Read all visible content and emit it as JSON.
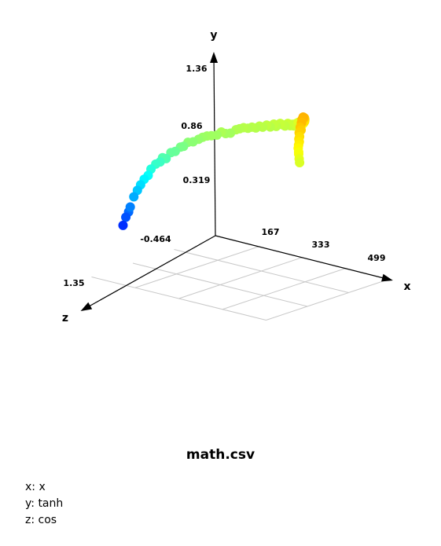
{
  "chart_data": {
    "type": "scatter",
    "title": "math.csv",
    "axes": {
      "x": {
        "label": "x",
        "ticks": [
          167,
          333,
          499
        ]
      },
      "y": {
        "label": "y",
        "ticks": [
          -0.464,
          0.319,
          0.86,
          1.36
        ]
      },
      "z": {
        "label": "z",
        "ticks": [
          1.35
        ]
      }
    },
    "grid": true,
    "colormap": "jet, colored by y",
    "ylim": [
      -0.464,
      1.36
    ],
    "mapping": {
      "x": "x",
      "y": "tanh",
      "z": "cos"
    },
    "series": [
      {
        "points": [
          [
            0,
            -0.02,
            1.0
          ],
          [
            6,
            0.07,
            0.98
          ],
          [
            12,
            0.13,
            0.96
          ],
          [
            18,
            0.19,
            0.97
          ],
          [
            24,
            0.3,
            0.93
          ],
          [
            30,
            0.37,
            0.89
          ],
          [
            36,
            0.43,
            0.86
          ],
          [
            42,
            0.49,
            0.82
          ],
          [
            48,
            0.53,
            0.77
          ],
          [
            54,
            0.6,
            0.75
          ],
          [
            60,
            0.65,
            0.68
          ],
          [
            66,
            0.67,
            0.62
          ],
          [
            72,
            0.72,
            0.61
          ],
          [
            78,
            0.71,
            0.57
          ],
          [
            84,
            0.77,
            0.5
          ],
          [
            90,
            0.78,
            0.44
          ],
          [
            96,
            0.82,
            0.36
          ],
          [
            102,
            0.83,
            0.33
          ],
          [
            108,
            0.87,
            0.27
          ],
          [
            114,
            0.87,
            0.19
          ],
          [
            120,
            0.89,
            0.1
          ],
          [
            126,
            0.91,
            0.05
          ],
          [
            132,
            0.92,
            -0.01
          ],
          [
            138,
            0.92,
            -0.07
          ],
          [
            144,
            0.92,
            -0.16
          ],
          [
            150,
            0.95,
            -0.22
          ],
          [
            156,
            0.93,
            -0.28
          ],
          [
            162,
            0.93,
            -0.35
          ],
          [
            168,
            0.96,
            -0.44
          ],
          [
            174,
            0.97,
            -0.48
          ],
          [
            180,
            0.98,
            -0.53
          ],
          [
            186,
            0.97,
            -0.59
          ],
          [
            192,
            0.98,
            -0.64
          ],
          [
            198,
            0.97,
            -0.69
          ],
          [
            204,
            0.99,
            -0.73
          ],
          [
            210,
            0.98,
            -0.76
          ],
          [
            216,
            1.0,
            -0.81
          ],
          [
            222,
            0.98,
            -0.85
          ],
          [
            228,
            1.01,
            -0.89
          ],
          [
            234,
            0.99,
            -0.9
          ],
          [
            240,
            1.02,
            -0.95
          ],
          [
            246,
            1.01,
            -0.96
          ],
          [
            252,
            1.0,
            -0.97
          ],
          [
            258,
            1.03,
            -0.99
          ],
          [
            264,
            1.01,
            -1.0
          ],
          [
            270,
            1.03,
            -1.0
          ],
          [
            276,
            1.02,
            -0.99
          ],
          [
            282,
            1.05,
            -0.99
          ],
          [
            288,
            1.04,
            -0.96
          ],
          [
            294,
            1.08,
            -0.95
          ],
          [
            300,
            1.05,
            -0.92
          ],
          [
            306,
            1.09,
            -0.91
          ],
          [
            312,
            1.07,
            -0.87
          ],
          [
            318,
            1.12,
            -0.84
          ],
          [
            324,
            1.11,
            -0.81
          ],
          [
            330,
            1.13,
            -0.77
          ],
          [
            336,
            1.15,
            -0.73
          ],
          [
            342,
            1.18,
            -0.7
          ],
          [
            348,
            1.17,
            -0.63
          ],
          [
            354,
            1.2,
            -0.6
          ],
          [
            360,
            1.22,
            -0.53
          ],
          [
            366,
            1.24,
            -0.5
          ],
          [
            372,
            1.23,
            -0.44
          ],
          [
            378,
            1.28,
            -0.39
          ],
          [
            384,
            1.3,
            -0.31
          ],
          [
            390,
            1.31,
            -0.28
          ],
          [
            396,
            1.33,
            -0.2
          ],
          [
            402,
            1.34,
            -0.16
          ],
          [
            408,
            1.36,
            -0.1
          ],
          [
            414,
            1.35,
            -0.02
          ],
          [
            420,
            1.33,
            0.04
          ],
          [
            426,
            1.34,
            0.1
          ],
          [
            432,
            1.31,
            0.18
          ],
          [
            438,
            1.29,
            0.21
          ],
          [
            444,
            1.28,
            0.31
          ],
          [
            450,
            1.25,
            0.35
          ],
          [
            456,
            1.24,
            0.42
          ],
          [
            462,
            1.22,
            0.46
          ],
          [
            468,
            1.2,
            0.53
          ],
          [
            474,
            1.18,
            0.59
          ],
          [
            480,
            1.15,
            0.63
          ],
          [
            486,
            1.14,
            0.68
          ],
          [
            492,
            1.1,
            0.72
          ],
          [
            498,
            1.07,
            0.76
          ]
        ]
      }
    ]
  }
}
